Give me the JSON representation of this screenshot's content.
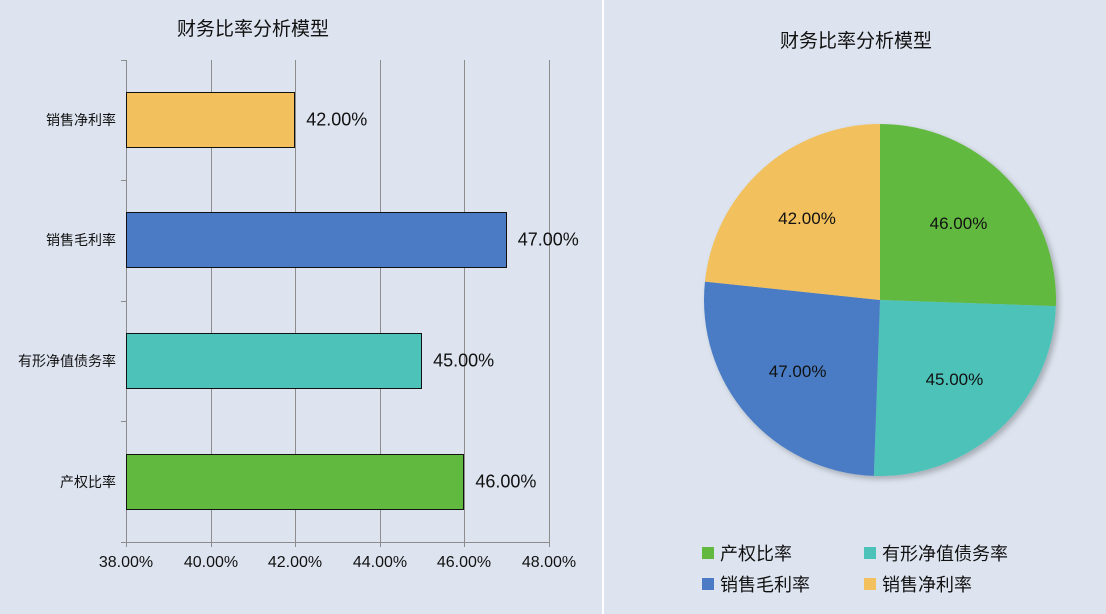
{
  "bar_chart": {
    "title": "财务比率分析模型",
    "x_ticks": [
      "38.00%",
      "40.00%",
      "42.00%",
      "44.00%",
      "46.00%",
      "48.00%"
    ],
    "categories": [
      {
        "label": "销售净利率",
        "value": 42,
        "value_label": "42.00%",
        "color": "#f2c05c"
      },
      {
        "label": "销售毛利率",
        "value": 47,
        "value_label": "47.00%",
        "color": "#4a7bc4"
      },
      {
        "label": "有形净值债务率",
        "value": 45,
        "value_label": "45.00%",
        "color": "#4dc2b9"
      },
      {
        "label": "产权比率",
        "value": 46,
        "value_label": "46.00%",
        "color": "#62b940"
      }
    ]
  },
  "pie_chart": {
    "title": "财务比率分析模型",
    "slices": [
      {
        "label": "产权比率",
        "value_label": "46.00%",
        "color": "#62b940"
      },
      {
        "label": "有形净值债务率",
        "value_label": "45.00%",
        "color": "#4dc2b9"
      },
      {
        "label": "销售毛利率",
        "value_label": "47.00%",
        "color": "#4a7bc4"
      },
      {
        "label": "销售净利率",
        "value_label": "42.00%",
        "color": "#f2c05c"
      }
    ],
    "legend": [
      {
        "label": "产权比率",
        "color": "#62b940"
      },
      {
        "label": "有形净值债务率",
        "color": "#4dc2b9"
      },
      {
        "label": "销售毛利率",
        "color": "#4a7bc4"
      },
      {
        "label": "销售净利率",
        "color": "#f2c05c"
      }
    ]
  },
  "chart_data": [
    {
      "type": "bar",
      "orientation": "horizontal",
      "title": "财务比率分析模型",
      "categories": [
        "销售净利率",
        "销售毛利率",
        "有形净值债务率",
        "产权比率"
      ],
      "values": [
        42.0,
        47.0,
        45.0,
        46.0
      ],
      "unit": "%",
      "xlim": [
        38,
        48
      ],
      "x_ticks": [
        38,
        40,
        42,
        44,
        46,
        48
      ],
      "grid": "vertical",
      "data_labels": [
        "42.00%",
        "47.00%",
        "45.00%",
        "46.00%"
      ],
      "colors": [
        "#f2c05c",
        "#4a7bc4",
        "#4dc2b9",
        "#62b940"
      ]
    },
    {
      "type": "pie",
      "title": "财务比率分析模型",
      "categories": [
        "产权比率",
        "有形净值债务率",
        "销售毛利率",
        "销售净利率"
      ],
      "values": [
        46.0,
        45.0,
        47.0,
        42.0
      ],
      "data_labels": [
        "46.00%",
        "45.00%",
        "47.00%",
        "42.00%"
      ],
      "colors": [
        "#62b940",
        "#4dc2b9",
        "#4a7bc4",
        "#f2c05c"
      ],
      "legend_position": "bottom"
    }
  ]
}
